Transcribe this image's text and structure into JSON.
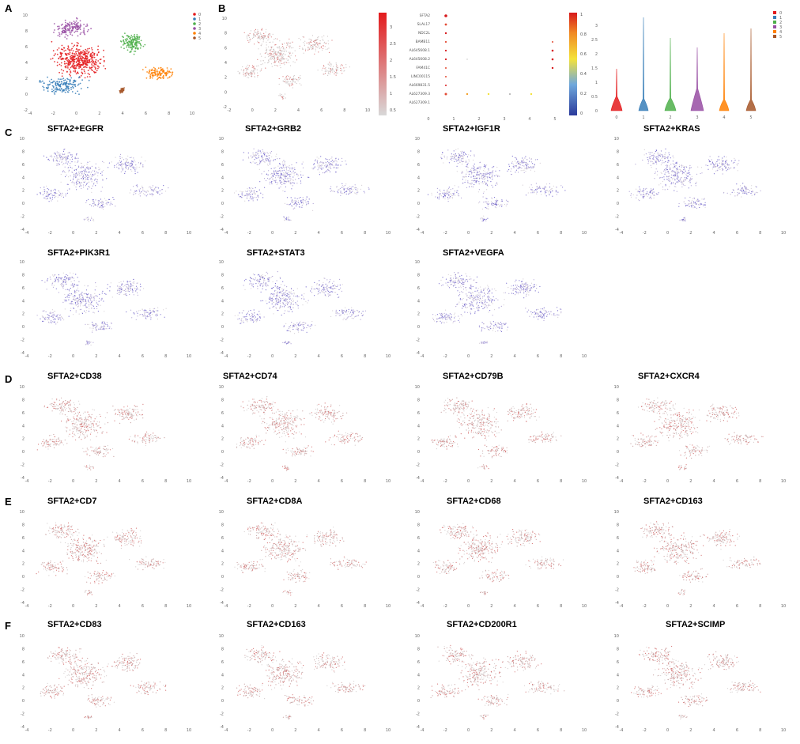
{
  "figure": {
    "panel_letters": [
      "A",
      "B",
      "C",
      "D",
      "E",
      "F"
    ],
    "panel_a": {
      "legend": [
        "0",
        "1",
        "2",
        "3",
        "4",
        "5"
      ],
      "cluster_colors": [
        "#e41a1c",
        "#377eb8",
        "#4daf4a",
        "#984ea3",
        "#ff7f00",
        "#a65628"
      ],
      "x_ticks": [
        "-4",
        "-2",
        "0",
        "2",
        "4",
        "6",
        "8",
        "10"
      ],
      "y_ticks": [
        "10",
        "8",
        "6",
        "4",
        "2",
        "0",
        "-2"
      ]
    },
    "panel_b": {
      "feature_colorbar_ticks": [
        "3",
        "2.5",
        "2",
        "1.5",
        "1",
        "0.5"
      ],
      "dotplot_genes": [
        "SFTA2",
        "SLAL17",
        "NDC2L",
        "BAMB11",
        "AL645608.1",
        "AL645608.2",
        "FAM41C",
        "LINC00115",
        "AL669831.5",
        "AL627309.3",
        "AL627309.1"
      ],
      "dotplot_colorbar_ticks": [
        "1",
        "0.8",
        "0.6",
        "0.4",
        "0.2",
        "0"
      ],
      "dotplot_x": [
        "0",
        "1",
        "2",
        "3",
        "4",
        "5"
      ],
      "violin_legend": [
        "0",
        "1",
        "2",
        "3",
        "4",
        "5"
      ],
      "violin_y_ticks": [
        "3",
        "2.5",
        "2",
        "1.5",
        "1",
        "0.5",
        "0"
      ],
      "violin_x": [
        "0",
        "1",
        "2",
        "3",
        "4",
        "5"
      ]
    },
    "umap_axis": {
      "x_ticks": [
        "-4",
        "-2",
        "0",
        "2",
        "4",
        "6",
        "8",
        "10"
      ],
      "y_ticks": [
        "10",
        "8",
        "6",
        "4",
        "2",
        "0",
        "-2",
        "-4"
      ]
    },
    "panel_c_titles": [
      "SFTA2+EGFR",
      "SFTA2+GRB2",
      "SFTA2+IGF1R",
      "SFTA2+KRAS",
      "SFTA2+PIK3R1",
      "SFTA2+STAT3",
      "SFTA2+VEGFA"
    ],
    "panel_d_titles": [
      "SFTA2+CD38",
      "SFTA2+CD74",
      "SFTA2+CD79B",
      "SFTA2+CXCR4"
    ],
    "panel_e_titles": [
      "SFTA2+CD7",
      "SFTA2+CD8A",
      "SFTA2+CD68",
      "SFTA2+CD163"
    ],
    "panel_f_titles": [
      "SFTA2+CD83",
      "SFTA2+CD163",
      "SFTA2+CD200R1",
      "SFTA2+SCIMP"
    ]
  }
}
